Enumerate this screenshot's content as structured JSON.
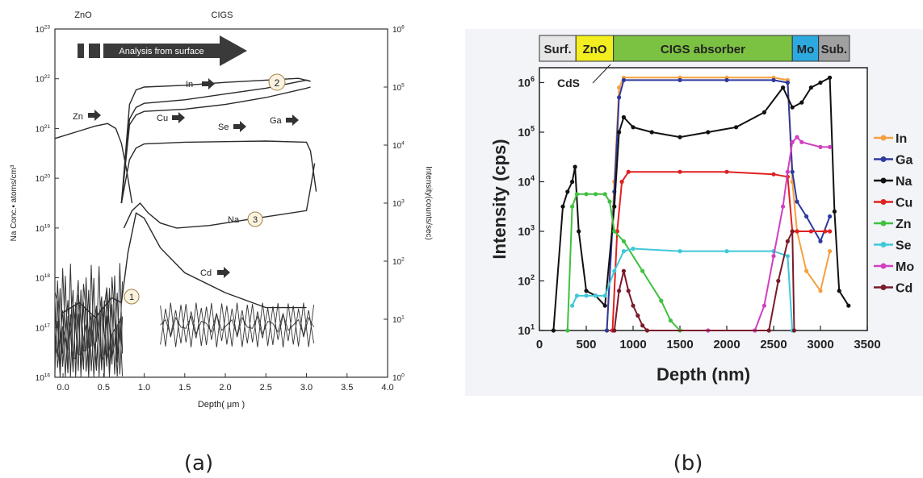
{
  "figure": {
    "caption_a": "(a)",
    "caption_b": "(b)"
  },
  "chart_data": [
    {
      "id": "a",
      "type": "line",
      "xlabel": "Depth( μm )",
      "ylabel_left": "Na Conc.•  atoms/cm³",
      "ylabel_right": "Intensity(counts/sec)",
      "xlim": [
        -0.1,
        4.0
      ],
      "x_ticks": [
        "0.0",
        "0.5",
        "1.0",
        "1.5",
        "2.0",
        "2.5",
        "3.0",
        "3.5",
        "4.0"
      ],
      "ylim_left_log10": [
        16,
        23
      ],
      "ylim_right_log10": [
        0,
        6
      ],
      "left_tick_exponents": [
        16,
        17,
        18,
        19,
        20,
        21,
        22,
        23
      ],
      "right_tick_exponents": [
        0,
        1,
        2,
        3,
        4,
        5,
        6
      ],
      "top_labels": [
        "ZnO",
        "CIGS"
      ],
      "arrow_label": "Analysis from surface",
      "annotations": [
        "In",
        "Cu",
        "Se",
        "Ga",
        "Zn",
        "Na",
        "Cd"
      ],
      "markers": [
        "1",
        "2",
        "3"
      ],
      "series": [
        {
          "name": "In",
          "axis": "right",
          "x": [
            0.72,
            0.82,
            0.9,
            1.0,
            1.5,
            2.0,
            2.5,
            2.9,
            3.05
          ],
          "y_log10": [
            3.0,
            4.7,
            4.95,
            5.0,
            5.03,
            5.08,
            5.12,
            5.15,
            5.1
          ]
        },
        {
          "name": "Cu",
          "axis": "right",
          "x": [
            0.72,
            0.82,
            0.9,
            1.0,
            1.5,
            2.0,
            2.5,
            3.0,
            3.05
          ],
          "y_log10": [
            3.0,
            4.45,
            4.65,
            4.72,
            4.78,
            4.88,
            4.98,
            5.12,
            5.1
          ]
        },
        {
          "name": "Ga",
          "axis": "right",
          "x": [
            0.72,
            0.82,
            0.9,
            1.0,
            1.5,
            2.0,
            2.5,
            3.0,
            3.05
          ],
          "y_log10": [
            3.0,
            4.35,
            4.52,
            4.58,
            4.62,
            4.7,
            4.82,
            4.98,
            5.0
          ]
        },
        {
          "name": "Se",
          "axis": "right",
          "x": [
            0.72,
            0.82,
            0.9,
            1.0,
            1.5,
            2.0,
            2.5,
            3.0,
            3.05,
            3.12
          ],
          "y_log10": [
            3.0,
            3.75,
            3.95,
            4.02,
            4.05,
            4.06,
            4.07,
            4.05,
            3.9,
            3.2
          ]
        },
        {
          "name": "Zn",
          "axis": "left",
          "x": [
            -0.1,
            0.0,
            0.2,
            0.4,
            0.55,
            0.65,
            0.72,
            0.78,
            0.85
          ],
          "y_log10": [
            20.8,
            20.85,
            20.95,
            21.05,
            21.1,
            21.0,
            20.7,
            20.2,
            19.5
          ]
        },
        {
          "name": "Na",
          "axis": "left",
          "x": [
            0.75,
            0.85,
            0.95,
            1.05,
            1.2,
            1.4,
            1.8,
            2.2,
            2.6,
            3.0,
            3.05,
            3.1
          ],
          "y_log10": [
            19.0,
            19.35,
            19.5,
            19.3,
            19.1,
            19.0,
            19.05,
            19.15,
            19.25,
            19.35,
            19.8,
            20.3
          ]
        },
        {
          "name": "Cd",
          "axis": "left",
          "x": [
            0.0,
            0.2,
            0.4,
            0.6,
            0.72,
            0.8,
            0.9,
            1.0,
            1.2,
            1.5,
            2.0,
            2.5,
            3.0
          ],
          "y_log10": [
            17.3,
            17.5,
            17.2,
            17.6,
            17.5,
            18.5,
            19.3,
            19.2,
            18.6,
            18.1,
            17.7,
            17.4,
            17.4
          ]
        }
      ]
    },
    {
      "id": "b",
      "type": "line",
      "xlabel": "Depth (nm)",
      "ylabel": "Intensity (cps)",
      "xlim": [
        0,
        3500
      ],
      "x_ticks": [
        "0",
        "500",
        "1000",
        "1500",
        "2000",
        "2500",
        "3000",
        "3500"
      ],
      "y_scale": "log",
      "ylim_log10": [
        1,
        6.3
      ],
      "y_tick_exponents": [
        1,
        2,
        3,
        4,
        5,
        6
      ],
      "layers": [
        {
          "label": "Surf.",
          "from": 0,
          "to": 390,
          "color": "#e6e6e6"
        },
        {
          "label": "ZnO",
          "from": 390,
          "to": 790,
          "color": "#f2ee20"
        },
        {
          "label": "CIGS absorber",
          "from": 790,
          "to": 2700,
          "color": "#7cc242"
        },
        {
          "label": "Mo",
          "from": 2700,
          "to": 2980,
          "color": "#2ea9e0"
        },
        {
          "label": "Sub.",
          "from": 2980,
          "to": 3310,
          "color": "#a0a0a0"
        }
      ],
      "annotation": "CdS",
      "series": [
        {
          "name": "In",
          "color": "#f5a040",
          "x": [
            720,
            800,
            850,
            900,
            1500,
            2000,
            2500,
            2650,
            2700,
            2750,
            2850,
            3000,
            3100
          ],
          "y_log10": [
            1.0,
            4.0,
            5.9,
            6.1,
            6.1,
            6.1,
            6.1,
            6.05,
            4.0,
            3.0,
            2.2,
            1.8,
            2.6
          ]
        },
        {
          "name": "Ga",
          "color": "#2e3a9e",
          "x": [
            720,
            800,
            850,
            900,
            1500,
            2000,
            2500,
            2650,
            2700,
            2750,
            2850,
            3000,
            3100
          ],
          "y_log10": [
            1.0,
            3.8,
            5.7,
            6.05,
            6.05,
            6.05,
            6.05,
            6.0,
            4.2,
            3.6,
            3.3,
            2.8,
            3.3
          ]
        },
        {
          "name": "Na",
          "color": "#111111",
          "x": [
            150,
            250,
            300,
            350,
            380,
            420,
            500,
            600,
            700,
            800,
            850,
            900,
            1000,
            1200,
            1500,
            1800,
            2100,
            2400,
            2600,
            2700,
            2800,
            2900,
            3000,
            3100,
            3150,
            3200,
            3300
          ],
          "y_log10": [
            1.0,
            3.5,
            3.8,
            4.0,
            4.3,
            3.0,
            1.8,
            1.7,
            1.5,
            3.5,
            5.0,
            5.3,
            5.1,
            5.0,
            4.9,
            5.0,
            5.1,
            5.4,
            5.9,
            5.5,
            5.6,
            5.9,
            6.0,
            6.1,
            3.4,
            1.8,
            1.5
          ]
        },
        {
          "name": "Cu",
          "color": "#e02020",
          "x": [
            780,
            830,
            880,
            950,
            1500,
            2000,
            2500,
            2650,
            2700,
            2750,
            2900,
            3050,
            3100
          ],
          "y_log10": [
            1.0,
            3.0,
            4.0,
            4.2,
            4.2,
            4.2,
            4.15,
            4.1,
            3.0,
            3.0,
            3.0,
            3.0,
            3.0
          ]
        },
        {
          "name": "Zn",
          "color": "#40c040",
          "x": [
            300,
            350,
            400,
            500,
            600,
            700,
            750,
            800,
            900,
            1100,
            1300,
            1400,
            1500
          ],
          "y_log10": [
            1.0,
            3.5,
            3.75,
            3.75,
            3.75,
            3.75,
            3.6,
            3.0,
            2.8,
            2.2,
            1.6,
            1.2,
            1.0
          ]
        },
        {
          "name": "Se",
          "color": "#40c8d8",
          "x": [
            350,
            400,
            500,
            600,
            700,
            800,
            900,
            1000,
            1500,
            2000,
            2500,
            2650,
            2700
          ],
          "y_log10": [
            1.5,
            1.7,
            1.7,
            1.7,
            1.7,
            2.2,
            2.6,
            2.65,
            2.6,
            2.6,
            2.6,
            2.5,
            1.0
          ]
        },
        {
          "name": "Mo",
          "color": "#d040c0",
          "x": [
            1800,
            2300,
            2400,
            2500,
            2600,
            2650,
            2700,
            2750,
            2800,
            3000,
            3100
          ],
          "y_log10": [
            1.0,
            1.0,
            1.5,
            2.5,
            3.5,
            4.2,
            4.8,
            4.9,
            4.8,
            4.7,
            4.7
          ]
        },
        {
          "name": "Cd",
          "color": "#7a1a2a",
          "x": [
            800,
            850,
            900,
            950,
            1000,
            1050,
            1100,
            1150,
            2450,
            2550,
            2650,
            2700,
            2720
          ],
          "y_log10": [
            1.0,
            1.8,
            2.2,
            1.8,
            1.5,
            1.3,
            1.1,
            1.0,
            1.0,
            2.0,
            2.8,
            3.0,
            1.0
          ]
        }
      ]
    }
  ]
}
